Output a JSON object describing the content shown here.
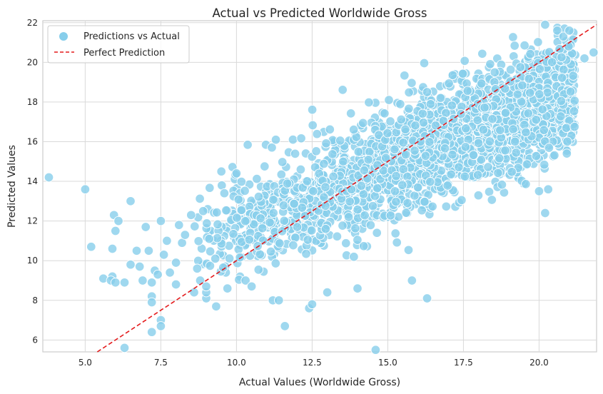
{
  "chart_data": {
    "type": "scatter",
    "title": "Actual vs Predicted Worldwide Gross",
    "xlabel": "Actual Values (Worldwide Gross)",
    "ylabel": "Predicted Values",
    "xlim": [
      3.6,
      21.9
    ],
    "ylim": [
      5.4,
      22.1
    ],
    "x_ticks": [
      5.0,
      7.5,
      10.0,
      12.5,
      15.0,
      17.5,
      20.0
    ],
    "x_tick_labels": [
      "5.0",
      "7.5",
      "10.0",
      "12.5",
      "15.0",
      "17.5",
      "20.0"
    ],
    "y_ticks": [
      6,
      8,
      10,
      12,
      14,
      16,
      18,
      20,
      22
    ],
    "y_tick_labels": [
      "6",
      "8",
      "10",
      "12",
      "14",
      "16",
      "18",
      "20",
      "22"
    ],
    "grid": true,
    "legend_position": "top-left",
    "series": [
      {
        "name": "Predictions vs Actual",
        "kind": "scatter",
        "color": "#87ceeb",
        "points": [
          [
            3.8,
            14.2
          ],
          [
            5.0,
            13.6
          ],
          [
            5.2,
            10.7
          ],
          [
            5.6,
            9.1
          ],
          [
            5.9,
            10.6
          ],
          [
            5.9,
            9.2
          ],
          [
            5.95,
            12.3
          ],
          [
            6.0,
            11.5
          ],
          [
            6.1,
            12.0
          ],
          [
            5.85,
            9.0
          ],
          [
            6.0,
            8.9
          ],
          [
            6.3,
            8.9
          ],
          [
            6.5,
            9.8
          ],
          [
            6.5,
            13.0
          ],
          [
            6.7,
            10.5
          ],
          [
            6.8,
            9.7
          ],
          [
            6.9,
            9.0
          ],
          [
            7.0,
            11.7
          ],
          [
            7.1,
            10.5
          ],
          [
            7.2,
            8.9
          ],
          [
            7.2,
            8.2
          ],
          [
            7.2,
            7.9
          ],
          [
            7.2,
            6.4
          ],
          [
            7.3,
            9.5
          ],
          [
            7.4,
            9.3
          ],
          [
            7.5,
            7.0
          ],
          [
            7.5,
            6.7
          ],
          [
            7.5,
            12.0
          ],
          [
            7.6,
            10.3
          ],
          [
            7.7,
            11.0
          ],
          [
            7.8,
            9.4
          ],
          [
            8.0,
            8.8
          ],
          [
            8.0,
            9.9
          ],
          [
            8.1,
            11.8
          ],
          [
            8.2,
            10.9
          ],
          [
            8.3,
            11.3
          ],
          [
            8.5,
            12.3
          ],
          [
            8.6,
            8.4
          ],
          [
            8.7,
            9.6
          ],
          [
            8.8,
            9.0
          ],
          [
            8.9,
            12.5
          ],
          [
            9.0,
            8.1
          ],
          [
            9.0,
            8.4
          ],
          [
            9.0,
            8.7
          ],
          [
            9.1,
            11.1
          ],
          [
            9.3,
            10.1
          ],
          [
            9.5,
            14.5
          ],
          [
            9.6,
            13.4
          ],
          [
            9.7,
            8.6
          ],
          [
            10.0,
            14.4
          ],
          [
            10.3,
            9.0
          ],
          [
            10.5,
            8.7
          ],
          [
            11.2,
            8.0
          ],
          [
            11.4,
            8.0
          ],
          [
            11.6,
            6.7
          ],
          [
            11.3,
            16.1
          ],
          [
            12.4,
            7.6
          ],
          [
            12.5,
            7.8
          ],
          [
            13.0,
            8.4
          ],
          [
            14.0,
            8.6
          ],
          [
            14.6,
            5.5
          ],
          [
            15.8,
            9.0
          ],
          [
            16.3,
            8.1
          ],
          [
            16.3,
            18.5
          ],
          [
            20.0,
            13.5
          ],
          [
            20.2,
            12.4
          ],
          [
            20.3,
            13.6
          ],
          [
            20.2,
            21.9
          ],
          [
            20.6,
            21.6
          ],
          [
            20.8,
            21.3
          ],
          [
            21.0,
            21.6
          ],
          [
            21.5,
            20.2
          ],
          [
            21.8,
            20.5
          ],
          [
            6.3,
            5.6
          ]
        ]
      },
      {
        "name": "Perfect Prediction",
        "kind": "line",
        "color": "#e41a1c",
        "dash": "dashed",
        "points": [
          [
            3.6,
            3.6
          ],
          [
            21.9,
            21.9
          ]
        ]
      }
    ]
  }
}
